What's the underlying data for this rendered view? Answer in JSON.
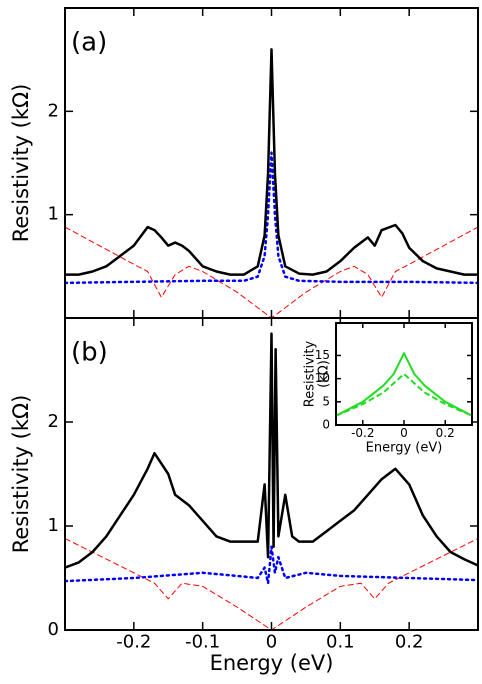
{
  "chart_data": [
    {
      "type": "line",
      "annotation": "(a)",
      "ylabel": "Resistivity (kΩ)",
      "xlim": [
        -0.3,
        0.3
      ],
      "ylim": [
        0,
        3
      ],
      "yticks": [
        1,
        2
      ],
      "xticks": [
        -0.2,
        -0.1,
        0,
        0.1,
        0.2
      ],
      "xticklabels": false,
      "series": [
        {
          "color": "#ff0000",
          "dash": "dashed",
          "width": 1,
          "x": [
            -0.3,
            -0.25,
            -0.2,
            -0.18,
            -0.16,
            -0.14,
            -0.12,
            -0.1,
            -0.05,
            0,
            0.05,
            0.1,
            0.12,
            0.14,
            0.16,
            0.18,
            0.2,
            0.25,
            0.3
          ],
          "values": [
            0.88,
            0.7,
            0.52,
            0.45,
            0.2,
            0.42,
            0.5,
            0.45,
            0.25,
            0,
            0.25,
            0.45,
            0.5,
            0.42,
            0.2,
            0.45,
            0.52,
            0.7,
            0.88
          ]
        },
        {
          "color": "#0000ff",
          "dash": "dotted",
          "width": 2.5,
          "x": [
            -0.3,
            -0.2,
            -0.1,
            -0.04,
            -0.02,
            -0.01,
            -0.005,
            0,
            0.005,
            0.01,
            0.02,
            0.04,
            0.1,
            0.2,
            0.3
          ],
          "values": [
            0.34,
            0.35,
            0.36,
            0.36,
            0.4,
            0.6,
            1.0,
            1.6,
            1.0,
            0.6,
            0.4,
            0.36,
            0.35,
            0.35,
            0.34
          ]
        },
        {
          "color": "#000000",
          "dash": "solid",
          "width": 2.5,
          "x": [
            -0.3,
            -0.28,
            -0.26,
            -0.24,
            -0.22,
            -0.2,
            -0.18,
            -0.17,
            -0.16,
            -0.15,
            -0.14,
            -0.13,
            -0.12,
            -0.1,
            -0.08,
            -0.06,
            -0.04,
            -0.02,
            -0.01,
            -0.005,
            0,
            0.005,
            0.01,
            0.02,
            0.04,
            0.06,
            0.08,
            0.1,
            0.12,
            0.14,
            0.15,
            0.16,
            0.18,
            0.19,
            0.2,
            0.22,
            0.24,
            0.26,
            0.28,
            0.3
          ],
          "values": [
            0.42,
            0.42,
            0.45,
            0.5,
            0.6,
            0.7,
            0.88,
            0.85,
            0.78,
            0.7,
            0.73,
            0.7,
            0.65,
            0.5,
            0.45,
            0.42,
            0.42,
            0.5,
            0.8,
            1.4,
            2.6,
            1.4,
            0.8,
            0.5,
            0.43,
            0.42,
            0.45,
            0.55,
            0.68,
            0.78,
            0.7,
            0.85,
            0.9,
            0.82,
            0.68,
            0.55,
            0.48,
            0.45,
            0.42,
            0.42
          ]
        }
      ]
    },
    {
      "type": "line",
      "annotation": "(b)",
      "ylabel": "Resistivity (kΩ)",
      "xlabel": "Energy (eV)",
      "xlim": [
        -0.3,
        0.3
      ],
      "ylim": [
        0,
        3
      ],
      "yticks": [
        0,
        1,
        2
      ],
      "xticks": [
        -0.2,
        -0.1,
        0,
        0.1,
        0.2
      ],
      "xticklabels": true,
      "series": [
        {
          "color": "#ff0000",
          "dash": "dashed",
          "width": 1,
          "x": [
            -0.3,
            -0.2,
            -0.17,
            -0.15,
            -0.13,
            -0.1,
            -0.05,
            0,
            0.05,
            0.1,
            0.13,
            0.15,
            0.17,
            0.2,
            0.3
          ],
          "values": [
            0.88,
            0.55,
            0.45,
            0.3,
            0.45,
            0.42,
            0.22,
            0,
            0.22,
            0.42,
            0.45,
            0.3,
            0.45,
            0.55,
            0.88
          ]
        },
        {
          "color": "#0000ff",
          "dash": "dotted",
          "width": 2.5,
          "x": [
            -0.3,
            -0.2,
            -0.1,
            -0.05,
            -0.02,
            -0.01,
            -0.005,
            0,
            0.005,
            0.01,
            0.02,
            0.05,
            0.1,
            0.2,
            0.3
          ],
          "values": [
            0.47,
            0.5,
            0.55,
            0.52,
            0.5,
            0.6,
            0.45,
            0.8,
            0.55,
            0.7,
            0.5,
            0.55,
            0.52,
            0.5,
            0.48
          ]
        },
        {
          "color": "#000000",
          "dash": "solid",
          "width": 2.5,
          "x": [
            -0.3,
            -0.28,
            -0.26,
            -0.24,
            -0.22,
            -0.2,
            -0.18,
            -0.17,
            -0.16,
            -0.15,
            -0.14,
            -0.12,
            -0.1,
            -0.08,
            -0.06,
            -0.04,
            -0.02,
            -0.01,
            -0.005,
            0,
            0.003,
            0.006,
            0.01,
            0.02,
            0.03,
            0.04,
            0.06,
            0.08,
            0.1,
            0.12,
            0.14,
            0.16,
            0.18,
            0.2,
            0.22,
            0.24,
            0.26,
            0.28,
            0.3
          ],
          "values": [
            0.6,
            0.65,
            0.75,
            0.9,
            1.1,
            1.3,
            1.55,
            1.7,
            1.6,
            1.5,
            1.3,
            1.2,
            1.05,
            0.9,
            0.85,
            0.85,
            0.85,
            1.4,
            0.7,
            2.85,
            0.8,
            2.7,
            0.9,
            1.3,
            0.9,
            0.85,
            0.85,
            0.95,
            1.05,
            1.15,
            1.3,
            1.45,
            1.55,
            1.4,
            1.1,
            0.9,
            0.75,
            0.68,
            0.62
          ]
        }
      ]
    },
    {
      "type": "line",
      "ylabel": [
        "Resistivity",
        "(kΩ)"
      ],
      "xlabel": "Energy (eV)",
      "xlim": [
        -0.33,
        0.33
      ],
      "ylim": [
        0,
        22
      ],
      "yticks": [
        0,
        5,
        10,
        15
      ],
      "xticks": [
        -0.2,
        0,
        0.2
      ],
      "xticklabels": true,
      "series": [
        {
          "color": "#22dd22",
          "dash": "dashed",
          "width": 2,
          "x": [
            -0.33,
            -0.2,
            -0.1,
            -0.05,
            0,
            0.05,
            0.1,
            0.2,
            0.33
          ],
          "values": [
            2,
            4.5,
            7,
            9,
            11,
            9,
            7,
            4.5,
            2
          ]
        },
        {
          "color": "#22dd22",
          "dash": "solid",
          "width": 2,
          "x": [
            -0.33,
            -0.2,
            -0.1,
            -0.05,
            0,
            0.05,
            0.1,
            0.2,
            0.33
          ],
          "values": [
            2,
            5,
            8.5,
            11,
            15.5,
            11,
            8.5,
            5,
            2
          ]
        }
      ]
    }
  ]
}
